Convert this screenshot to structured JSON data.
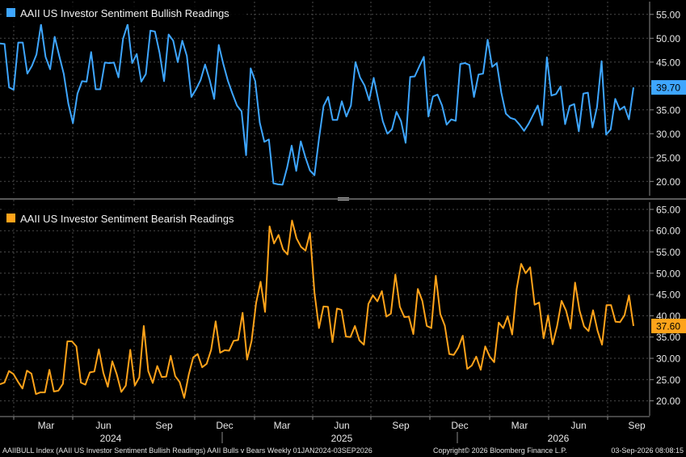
{
  "footer": {
    "series_info": "AAIIBULL Index (AAII US Investor Sentiment Bullish Readings) AAII Bulls v Bears Weekly 01JAN2024-03SEP2026",
    "copyright": "Copyright© 2026 Bloomberg Finance L.P.",
    "timestamp": "03-Sep-2026 08:08:15"
  },
  "colors": {
    "bullish": "#3ea6ff",
    "bearish": "#ffa31a",
    "grid": "#4a4a4a",
    "background": "#000000"
  },
  "chart_data": [
    {
      "type": "line",
      "title": "",
      "legend": "AAII US Investor Sentiment Bullish Readings",
      "legend_position": "top-left",
      "ylim": [
        17,
        57
      ],
      "yticks": [
        20,
        25,
        30,
        35,
        40,
        45,
        50,
        55
      ],
      "ytick_labels": [
        "20.00",
        "25.00",
        "30.00",
        "35.00",
        "40.00",
        "45.00",
        "50.00",
        "55.00"
      ],
      "last_value_label": "39.70",
      "grid": true,
      "series": [
        {
          "name": "AAII US Investor Sentiment Bullish Readings",
          "values": [
            48.9,
            48.8,
            39.7,
            39.2,
            49.1,
            49.1,
            42.6,
            44.2,
            46.6,
            52.9,
            46.1,
            43.5,
            50.3,
            46.3,
            42.5,
            36.3,
            32.2,
            38.4,
            41.0,
            40.9,
            47.1,
            39.3,
            39.3,
            44.9,
            44.8,
            44.9,
            41.8,
            49.9,
            52.9,
            44.8,
            46.7,
            40.9,
            42.5,
            51.6,
            51.4,
            47.0,
            41.0,
            50.8,
            49.5,
            45.0,
            49.5,
            46.3,
            37.7,
            39.3,
            41.2,
            44.5,
            41.3,
            37.3,
            48.6,
            44.6,
            41.1,
            38.4,
            35.9,
            34.7,
            25.5,
            43.7,
            41.0,
            32.3,
            28.3,
            28.8,
            19.6,
            19.4,
            19.3,
            22.9,
            27.5,
            22.2,
            28.4,
            25.1,
            22.3,
            21.3,
            29.0,
            35.8,
            37.7,
            32.9,
            32.9,
            36.8,
            33.6,
            35.9,
            45.0,
            41.8,
            40.1,
            37.0,
            41.7,
            37.1,
            32.6,
            30.0,
            30.9,
            34.6,
            32.6,
            28.1,
            41.9,
            42.0,
            44.1,
            46.1,
            33.6,
            37.8,
            38.2,
            35.9,
            31.9,
            33.0,
            32.7,
            44.6,
            44.8,
            44.4,
            37.7,
            42.4,
            42.6,
            49.7,
            44.0,
            44.8,
            38.6,
            34.2,
            33.3,
            33.0,
            31.9,
            30.6,
            32.1,
            34.0,
            35.9,
            31.8,
            46.0,
            38.0,
            38.3,
            39.9,
            32.0,
            35.8,
            36.2,
            30.5,
            38.4,
            38.6,
            31.3,
            35.6,
            45.2,
            29.8,
            30.9,
            37.3,
            35.0,
            35.7,
            33.0,
            39.7
          ]
        }
      ]
    },
    {
      "type": "line",
      "title": "",
      "legend": "AAII US Investor Sentiment Bearish Readings",
      "legend_position": "top-left",
      "ylim": [
        16.5,
        66.5
      ],
      "yticks": [
        20,
        25,
        30,
        35,
        40,
        45,
        50,
        55,
        60,
        65
      ],
      "ytick_labels": [
        "20.00",
        "25.00",
        "30.00",
        "35.00",
        "40.00",
        "45.00",
        "50.00",
        "55.00",
        "60.00",
        "65.00"
      ],
      "last_value_label": "37.60",
      "grid": true,
      "series": [
        {
          "name": "AAII US Investor Sentiment Bearish Readings",
          "values": [
            23.9,
            24.3,
            27.0,
            26.3,
            24.5,
            22.9,
            27.1,
            26.4,
            21.6,
            22.0,
            22.0,
            27.3,
            22.2,
            22.4,
            24.0,
            34.0,
            34.0,
            32.8,
            24.3,
            23.8,
            26.7,
            26.9,
            32.1,
            26.6,
            23.3,
            29.3,
            26.2,
            22.1,
            23.6,
            32.0,
            23.6,
            25.5,
            37.6,
            27.0,
            24.2,
            28.2,
            25.6,
            25.7,
            30.6,
            25.8,
            24.4,
            20.7,
            26.1,
            30.2,
            31.0,
            27.9,
            28.7,
            32.0,
            38.7,
            31.3,
            31.9,
            31.8,
            34.1,
            34.3,
            40.7,
            29.7,
            34.1,
            43.0,
            48.0,
            40.9,
            61.0,
            57.0,
            59.0,
            55.6,
            54.4,
            62.4,
            58.2,
            56.2,
            55.3,
            59.5,
            45.4,
            37.1,
            42.2,
            42.1,
            33.8,
            41.7,
            41.4,
            35.1,
            35.0,
            37.6,
            34.2,
            33.2,
            42.8,
            44.8,
            43.4,
            45.8,
            39.8,
            40.5,
            49.7,
            42.1,
            39.7,
            39.8,
            35.7,
            46.3,
            43.5,
            37.6,
            37.1,
            49.4,
            40.4,
            37.7,
            31.0,
            30.8,
            32.5,
            35.3,
            27.5,
            28.3,
            30.4,
            27.3,
            32.8,
            30.4,
            29.1,
            38.4,
            37.1,
            39.9,
            35.6,
            46.3,
            52.2,
            50.0,
            51.4,
            42.6,
            43.1,
            34.7,
            40.1,
            33.3,
            37.6,
            43.5,
            41.2,
            37.0,
            47.8,
            41.2,
            37.5,
            36.4,
            41.3,
            36.5,
            33.2,
            42.5,
            42.5,
            38.6,
            38.5,
            40.1,
            44.8,
            37.6
          ]
        }
      ]
    }
  ],
  "x_axis": {
    "month_ticks": [
      "Mar",
      "Jun",
      "Sep",
      "Dec",
      "Mar",
      "Jun",
      "Sep",
      "Dec",
      "Mar",
      "Jun",
      "Sep"
    ],
    "year_labels": [
      "2024",
      "2025",
      "2026"
    ]
  }
}
